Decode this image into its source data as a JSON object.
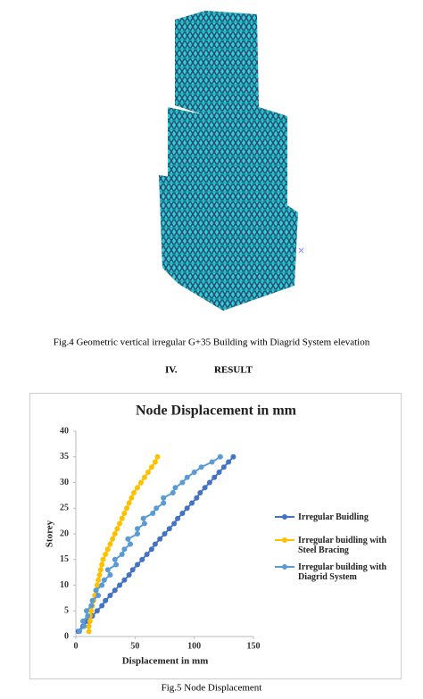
{
  "figure4": {
    "caption": "Fig.4 Geometric vertical irregular G+35 Building with Diagrid System elevation"
  },
  "section": {
    "number": "IV.",
    "title": "RESULT"
  },
  "chart_data": {
    "type": "line",
    "title": "Node Displacement in mm",
    "x_label": "Displacement in mm",
    "y_label": "Storey",
    "xlim": [
      0,
      150
    ],
    "xticks": [
      0,
      50,
      100,
      150
    ],
    "ylim": [
      0,
      40
    ],
    "yticks": [
      0,
      5,
      10,
      15,
      20,
      25,
      30,
      35,
      40
    ],
    "legend": "right",
    "grid": false,
    "series": [
      {
        "name": "Irregular Buidling",
        "color": "#4472c4",
        "x": [
          2,
          6,
          10,
          14,
          18,
          22,
          25,
          29,
          33,
          37,
          41,
          45,
          48,
          52,
          56,
          60,
          64,
          67,
          71,
          75,
          79,
          83,
          86,
          90,
          94,
          98,
          102,
          105,
          109,
          113,
          117,
          121,
          125,
          129,
          133
        ],
        "values": [
          1,
          2,
          3,
          4,
          5,
          6,
          7,
          8,
          9,
          10,
          11,
          12,
          13,
          14,
          15,
          16,
          17,
          18,
          19,
          20,
          21,
          22,
          23,
          24,
          25,
          26,
          27,
          28,
          29,
          30,
          31,
          32,
          33,
          34,
          35
        ]
      },
      {
        "name": "Irregular buidling with Steel Bracing",
        "color": "#ffc000",
        "x": [
          11,
          11,
          12,
          12,
          13,
          14,
          15,
          16,
          17,
          18,
          19,
          20,
          21,
          22,
          23,
          25,
          27,
          29,
          31,
          33,
          35,
          37,
          39,
          41,
          43,
          45,
          47,
          49,
          52,
          55,
          58,
          61,
          64,
          67,
          69
        ],
        "values": [
          1,
          2,
          3,
          4,
          5,
          6,
          7,
          8,
          9,
          10,
          11,
          12,
          13,
          14,
          15,
          16,
          17,
          18,
          19,
          20,
          21,
          22,
          23,
          24,
          25,
          26,
          27,
          28,
          29,
          30,
          31,
          32,
          33,
          34,
          35
        ]
      },
      {
        "name": "Irregular building with Diagrid System",
        "color": "#5b9bd5",
        "x": [
          3,
          7,
          6,
          10,
          9,
          13,
          14,
          19,
          17,
          22,
          24,
          29,
          27,
          34,
          33,
          39,
          41,
          46,
          44,
          52,
          52,
          58,
          57,
          65,
          68,
          74,
          74,
          82,
          84,
          90,
          94,
          100,
          106,
          115,
          122
        ],
        "values": [
          1,
          2,
          3,
          4,
          5,
          6,
          7,
          8,
          9,
          10,
          11,
          12,
          13,
          14,
          15,
          16,
          17,
          18,
          19,
          20,
          21,
          22,
          23,
          24,
          25,
          26,
          27,
          28,
          29,
          30,
          31,
          32,
          33,
          34,
          35
        ]
      }
    ]
  },
  "figure5": {
    "caption": "Fig.5 Node Displacement"
  }
}
